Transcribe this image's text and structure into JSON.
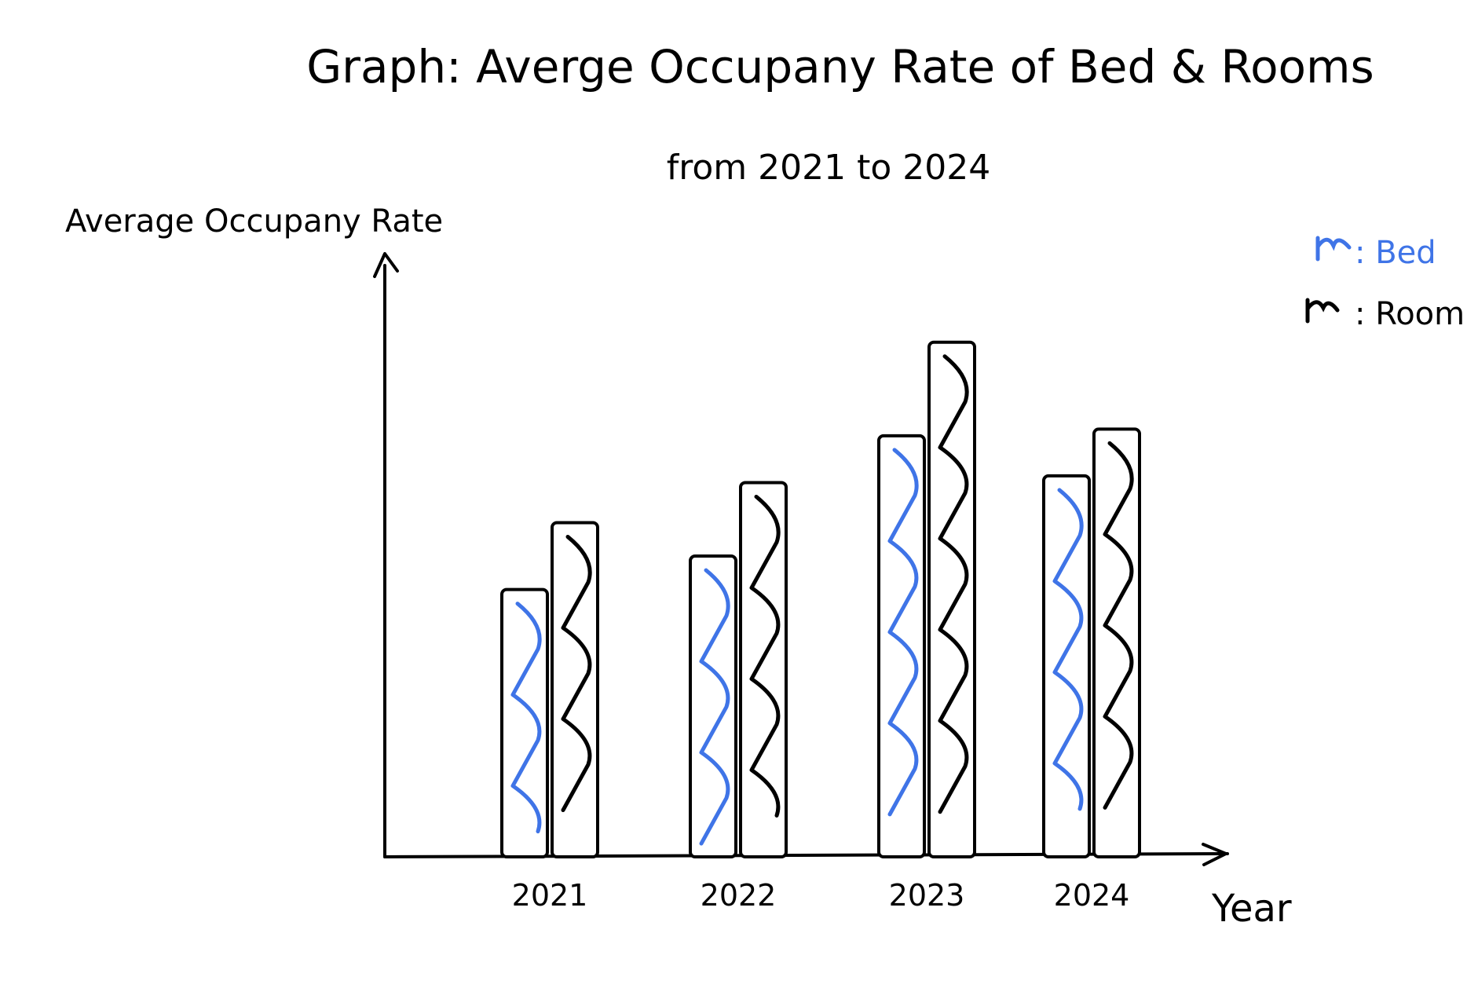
{
  "chart_data": {
    "type": "bar",
    "title": "Graph: Averge Occupany Rate of Bed & Rooms",
    "subtitle": "from 2021 to 2024",
    "xlabel": "Year",
    "ylabel": "Average Occupany Rate",
    "categories": [
      "2021",
      "2022",
      "2023",
      "2024"
    ],
    "series": [
      {
        "name": "Bed",
        "values": [
          40,
          45,
          63,
          57
        ],
        "color": "#3f74e7"
      },
      {
        "name": "Room",
        "values": [
          50,
          56,
          77,
          64
        ],
        "color": "#000000"
      }
    ],
    "ylim": [
      0,
      100
    ],
    "grid": false,
    "legend_position": "top-right"
  },
  "legend": {
    "bed_label": ": Bed",
    "room_label": ": Room"
  }
}
